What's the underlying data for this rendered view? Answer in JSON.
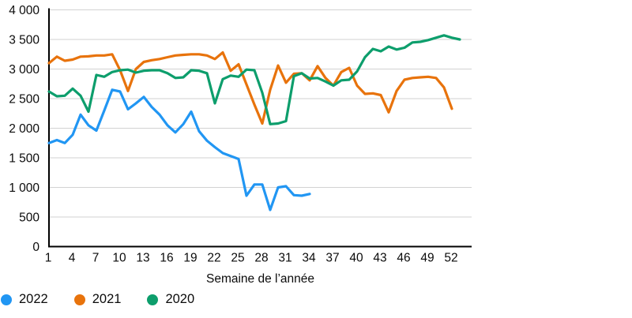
{
  "chart_data": {
    "type": "line",
    "title": "",
    "xlabel": "Semaine de l’année",
    "ylabel": "",
    "xlim": [
      1,
      53
    ],
    "ylim": [
      0,
      4000
    ],
    "y_tick_step": 500,
    "y_tick_labels_bottom_to_top": [
      "0",
      "500",
      "1 000",
      "1 500",
      "2 000",
      "2 500",
      "3 000",
      "3 500",
      "4 000"
    ],
    "x_ticks": [
      1,
      4,
      7,
      10,
      13,
      16,
      19,
      22,
      25,
      28,
      31,
      34,
      37,
      40,
      43,
      46,
      49,
      52
    ],
    "grid": "horizontal",
    "legend_position": "bottom-left",
    "colors": {
      "axis": "#000000",
      "gridline": "#d2d2d2",
      "text": "#0b0b0b"
    },
    "series": [
      {
        "name": "2022",
        "color": "#2196f3",
        "start_week": 1,
        "values": [
          1750,
          1800,
          1750,
          1890,
          2230,
          2050,
          1960,
          2300,
          2650,
          2620,
          2320,
          2420,
          2530,
          2360,
          2230,
          2050,
          1930,
          2070,
          2280,
          1950,
          1790,
          1680,
          1580,
          1530,
          1480,
          860,
          1050,
          1050,
          620,
          1000,
          1020,
          870,
          860,
          890
        ]
      },
      {
        "name": "2021",
        "color": "#e8730c",
        "start_week": 1,
        "values": [
          3100,
          3210,
          3140,
          3160,
          3210,
          3215,
          3230,
          3230,
          3250,
          2980,
          2630,
          3000,
          3120,
          3150,
          3170,
          3200,
          3230,
          3240,
          3250,
          3250,
          3230,
          3170,
          3280,
          2970,
          3080,
          2740,
          2400,
          2080,
          2650,
          3060,
          2770,
          2920,
          2930,
          2810,
          3050,
          2850,
          2720,
          2950,
          3020,
          2720,
          2580,
          2590,
          2560,
          2270,
          2630,
          2820,
          2850,
          2860,
          2870,
          2850,
          2690,
          2330
        ]
      },
      {
        "name": "2020",
        "color": "#0d9e6c",
        "start_week": 1,
        "values": [
          2620,
          2540,
          2550,
          2670,
          2550,
          2280,
          2900,
          2870,
          2950,
          2980,
          2990,
          2940,
          2970,
          2980,
          2980,
          2930,
          2850,
          2860,
          2980,
          2970,
          2930,
          2420,
          2830,
          2890,
          2870,
          2990,
          2980,
          2600,
          2070,
          2080,
          2120,
          2880,
          2930,
          2840,
          2850,
          2790,
          2720,
          2810,
          2820,
          2960,
          3200,
          3340,
          3300,
          3380,
          3330,
          3360,
          3450,
          3460,
          3490,
          3530,
          3570,
          3530,
          3500
        ]
      }
    ]
  }
}
